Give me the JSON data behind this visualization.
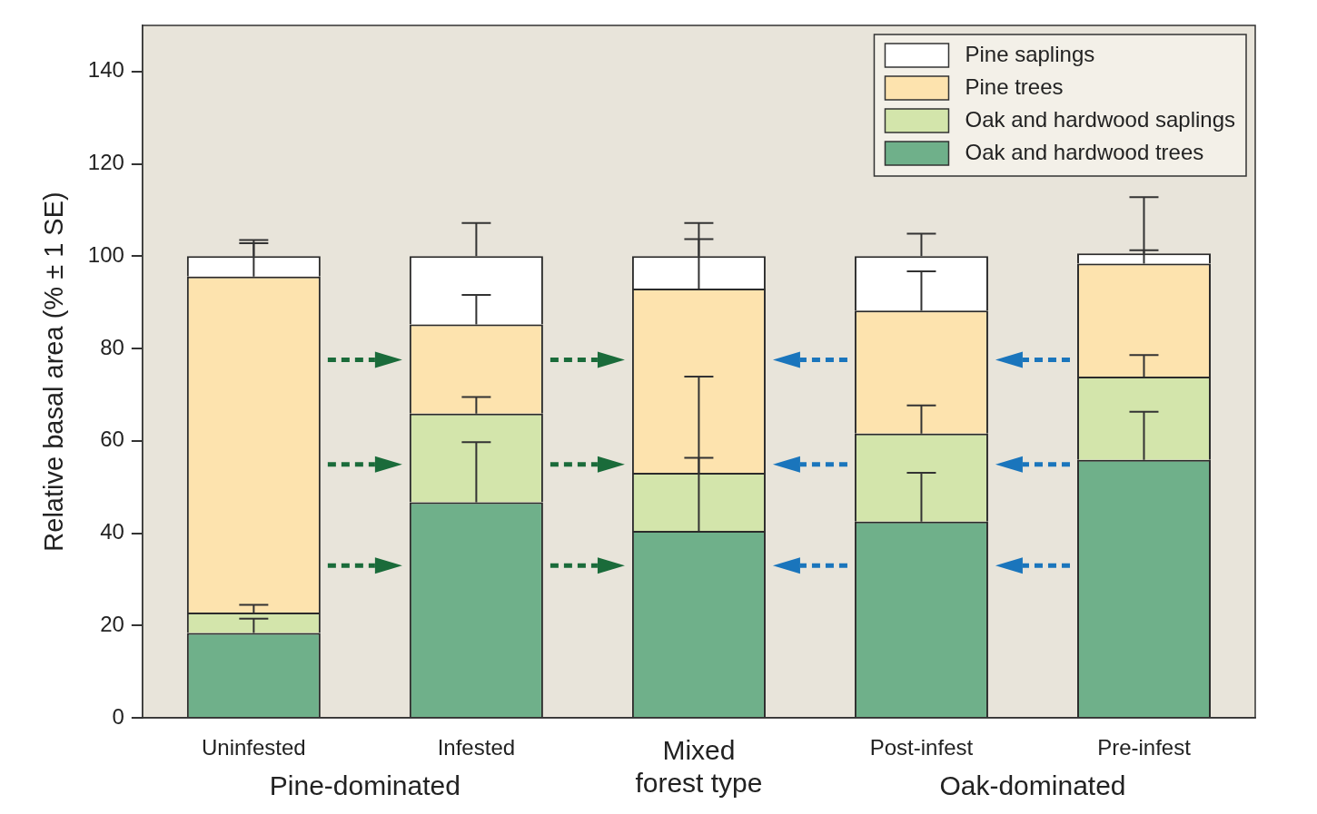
{
  "chart_data": {
    "type": "bar",
    "stacked": true,
    "ylabel": "Relative basal area (% ± 1 SE)",
    "categories": [
      "Uninfested",
      "Infested",
      "Mixed forest type",
      "Post-infest",
      "Pre-infest"
    ],
    "series": [
      {
        "name": "Oak and hardwood trees",
        "color": "#6fb08a",
        "values": [
          18.4,
          46.7,
          40.5,
          42.5,
          55.9
        ],
        "errors": [
          [
            18.4,
            21.5
          ],
          [
            46.7,
            59.7
          ],
          [
            40.5,
            56.3
          ],
          [
            42.5,
            53.1
          ],
          [
            55.9,
            66.3
          ]
        ]
      },
      {
        "name": "Oak and hardwood saplings",
        "color": "#d3e5ab",
        "values": [
          4.4,
          19.2,
          12.6,
          19.1,
          18.0
        ],
        "errors": [
          [
            22.8,
            24.5
          ],
          [
            65.9,
            69.5
          ],
          [
            53.1,
            73.9
          ],
          [
            61.6,
            67.7
          ],
          [
            73.9,
            78.6
          ]
        ]
      },
      {
        "name": "Pine trees",
        "color": "#fde3ae",
        "values": [
          72.8,
          19.3,
          39.9,
          26.6,
          24.5
        ],
        "errors": [
          [
            95.6,
            102.8
          ],
          [
            85.2,
            91.6
          ],
          [
            93.0,
            103.7
          ],
          [
            88.2,
            96.7
          ],
          [
            98.4,
            101.3
          ]
        ]
      },
      {
        "name": "Pine saplings",
        "color": "#ffffff",
        "values": [
          4.4,
          14.8,
          7.0,
          11.8,
          2.2
        ],
        "errors": [
          [
            100,
            103.5
          ],
          [
            100,
            107.2
          ],
          [
            100,
            107.2
          ],
          [
            100,
            104.9
          ],
          [
            100.6,
            112.8
          ]
        ]
      }
    ],
    "ylim": [
      0,
      150
    ],
    "yticks": [
      0,
      20,
      40,
      60,
      80,
      100,
      120,
      140
    ],
    "grid": false,
    "legend": "top right",
    "annotations": [
      "Pine-dominated",
      "Oak-dominated"
    ]
  }
}
